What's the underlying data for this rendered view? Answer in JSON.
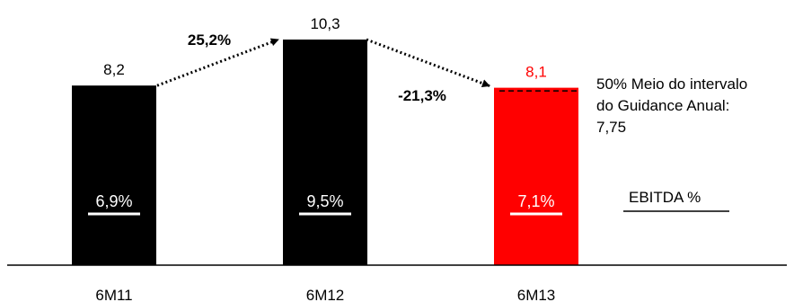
{
  "chart_data": {
    "type": "bar",
    "categories": [
      "6M11",
      "6M12",
      "6M13"
    ],
    "values": [
      8.2,
      10.3,
      8.1
    ],
    "value_labels": [
      "8,2",
      "10,3",
      "8,1"
    ],
    "ebitda_margins": [
      "6,9%",
      "9,5%",
      "7,1%"
    ],
    "ebitda_label": "EBITDA %",
    "growth_labels": [
      "25,2%",
      "-21,3%"
    ],
    "guidance_value": 7.75,
    "guidance_note": [
      "50% Meio do intervalo",
      "do Guidance Anual:",
      "7,75"
    ],
    "ylim": [
      0,
      10.3
    ],
    "colors": {
      "bar_default": "#000000",
      "bar_highlight": "#ff0000",
      "value_highlight": "#ff0000",
      "margin_text": "#ffffff",
      "text": "#000000"
    },
    "title": "",
    "xlabel": "",
    "ylabel": ""
  }
}
